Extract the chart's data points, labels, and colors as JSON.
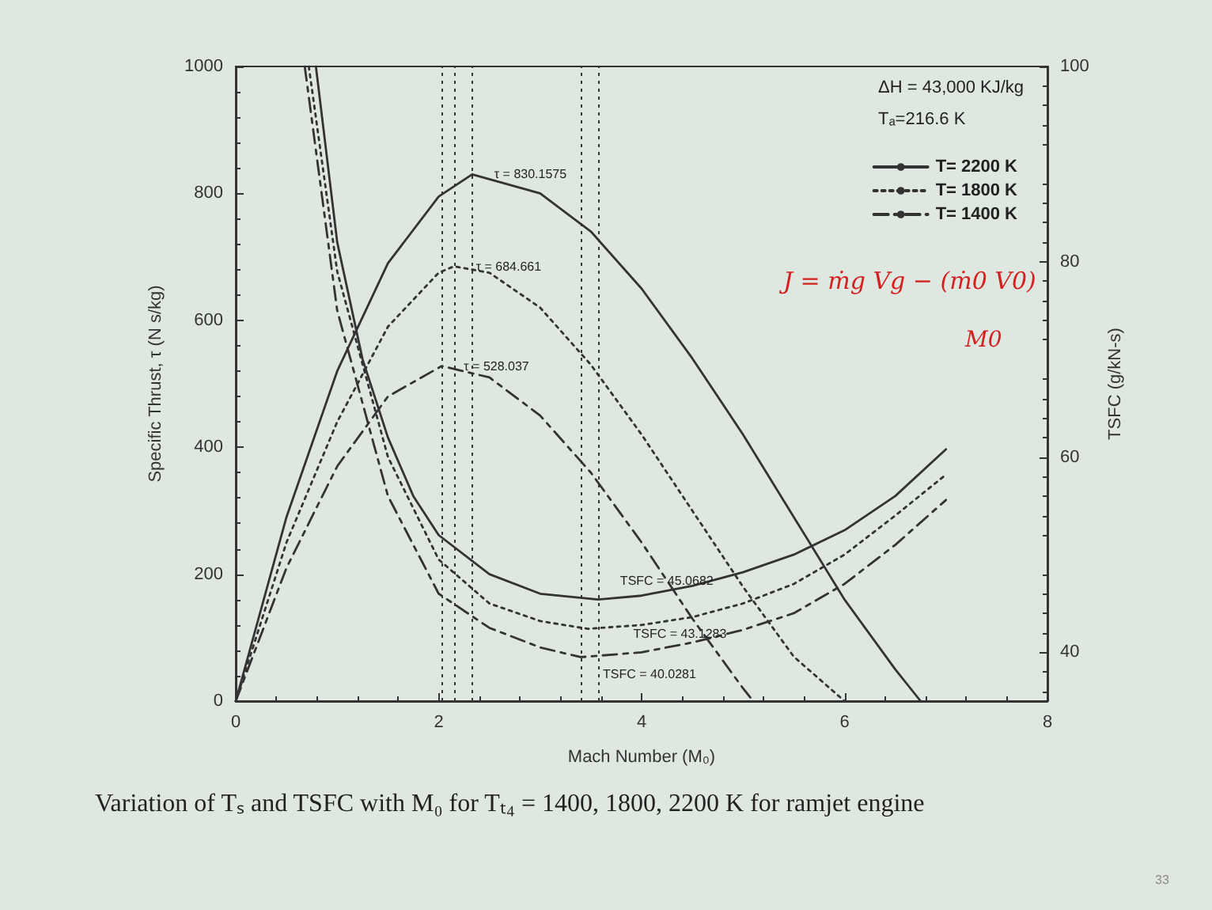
{
  "chart_data": {
    "type": "line",
    "xlabel": "Mach Number (M₀)",
    "ylabel": "Specific Thrust, τ (N s/kg)",
    "y2label": "TSFC (g/kN-s)",
    "xlim": [
      0,
      8
    ],
    "xticks": [
      0,
      2,
      4,
      6,
      8
    ],
    "ylim": [
      0,
      1000
    ],
    "yticks": [
      0,
      200,
      400,
      600,
      800,
      1000
    ],
    "y2lim": [
      35,
      100
    ],
    "y2ticks": [
      40,
      60,
      80,
      100
    ],
    "grid": false,
    "legend": "top right",
    "marker": "none",
    "series": [
      {
        "name": "T= 2200 K",
        "color": "#333333",
        "line_style": "solid",
        "x": [
          0,
          0.5,
          1,
          1.5,
          2,
          2.33,
          3,
          3.5,
          4,
          4.5,
          5,
          5.5,
          6,
          6.5,
          6.75
        ],
        "values": [
          0,
          290,
          520,
          690,
          795,
          830,
          800,
          740,
          650,
          540,
          420,
          290,
          160,
          50,
          0
        ]
      },
      {
        "name": "T= 1800 K",
        "color": "#333333",
        "line_style": "dotted",
        "x": [
          0,
          0.5,
          1,
          1.5,
          2,
          2.15,
          2.5,
          3,
          3.5,
          4,
          4.5,
          5,
          5.5,
          6
        ],
        "values": [
          0,
          250,
          440,
          590,
          675,
          685,
          675,
          620,
          530,
          420,
          300,
          180,
          70,
          0
        ]
      },
      {
        "name": "T= 1400 K",
        "color": "#333333",
        "line_style": "dashed",
        "x": [
          0,
          0.5,
          1,
          1.5,
          2.03,
          2.5,
          3,
          3.5,
          4,
          4.5,
          5,
          5.1
        ],
        "values": [
          0,
          210,
          370,
          480,
          528,
          510,
          450,
          360,
          250,
          130,
          20,
          0
        ]
      },
      {
        "color": "#333333",
        "line_style": "solid",
        "axis": "y2",
        "x": [
          0.79,
          1,
          1.25,
          1.5,
          1.75,
          2,
          2.5,
          3,
          3.57,
          4,
          4.5,
          5,
          5.5,
          6,
          6.5,
          7
        ],
        "values": [
          100,
          82,
          70,
          62,
          56,
          52,
          48,
          46,
          45.4,
          45.8,
          46.8,
          48.2,
          50,
          52.5,
          56,
          60.8
        ]
      },
      {
        "color": "#333333",
        "line_style": "dotted",
        "axis": "y2",
        "x": [
          0.72,
          1,
          1.5,
          2,
          2.5,
          3,
          3.47,
          4,
          4.5,
          5,
          5.5,
          6,
          6.5,
          7
        ],
        "values": [
          100,
          79,
          60,
          49.5,
          45,
          43.2,
          42.4,
          42.8,
          43.6,
          45,
          47,
          50,
          54,
          58.2
        ]
      },
      {
        "color": "#333333",
        "line_style": "dashed",
        "axis": "y2",
        "x": [
          0.68,
          1,
          1.5,
          2,
          2.5,
          3,
          3.4,
          4,
          4.5,
          5,
          5.5,
          6,
          6.5,
          7
        ],
        "values": [
          100,
          75,
          56,
          46,
          42.5,
          40.5,
          39.5,
          40,
          41,
          42.3,
          44,
          47,
          51,
          55.6
        ]
      }
    ],
    "ref_lines": [
      {
        "axis": "x",
        "value": 2.03,
        "color": "#333333",
        "line_style": "dotted"
      },
      {
        "axis": "x",
        "value": 2.15,
        "color": "#333333",
        "line_style": "dotted"
      },
      {
        "axis": "x",
        "value": 2.33,
        "color": "#333333",
        "line_style": "dotted"
      },
      {
        "axis": "x",
        "value": 3.4,
        "color": "#333333",
        "line_style": "dotted"
      },
      {
        "axis": "x",
        "value": 3.57,
        "color": "#333333",
        "line_style": "dotted"
      }
    ],
    "annotations": [
      "ΔH = 43,000 KJ/kg",
      "Tₐ=216.6 K",
      "J = ṁg Vg − (ṁ0 V0)",
      "M0",
      "Variation of Tₛ and TSFC with M₀ for Tₜ₄ = 1400, 1800, 2200 K for ramjet engine",
      "33",
      {
        "text": "τ = 830.1575",
        "x": 2.33,
        "y": 830
      },
      {
        "text": "τ = 684.661",
        "x": 2.15,
        "y": 685
      },
      {
        "text": "τ = 528.037",
        "x": 2.03,
        "y": 528
      },
      {
        "text": "TSFC = 45.0682",
        "x": 3.57,
        "y": 190
      },
      {
        "text": "TSFC = 43.1283",
        "x": 3.7,
        "y": 106
      },
      {
        "text": "TSFC = 40.0281",
        "x": 3.4,
        "y": 42
      }
    ]
  }
}
